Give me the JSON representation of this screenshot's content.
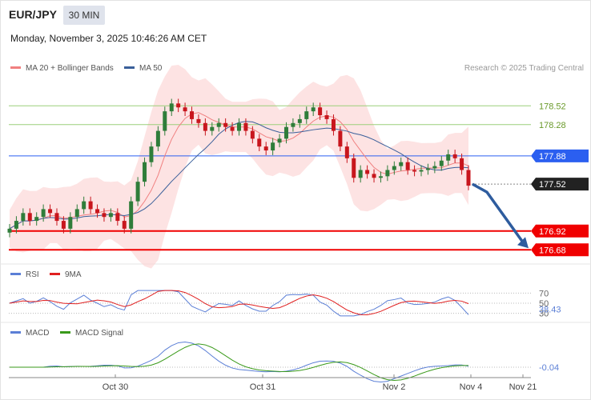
{
  "header": {
    "pair": "EUR/JPY",
    "timeframe": "30 MIN",
    "datetime": "Monday, November 3, 2025 10:46:26 AM CET",
    "credit": "Research © 2025 Trading Central"
  },
  "legends": {
    "price": [
      {
        "label": "MA 20 + Bollinger Bands",
        "color": "#f08080"
      },
      {
        "label": "MA 50",
        "color": "#3a5f9a"
      }
    ],
    "rsi": [
      {
        "label": "RSI",
        "color": "#5b7fd6"
      },
      {
        "label": "9MA",
        "color": "#e02020"
      }
    ],
    "macd": [
      {
        "label": "MACD",
        "color": "#5b7fd6"
      },
      {
        "label": "MACD Signal",
        "color": "#3a9a1a"
      }
    ]
  },
  "chart_data": {
    "type": "line",
    "instrument": "EUR/JPY",
    "interval": "30 MIN",
    "price_panel": {
      "candle_close_path": [
        176.95,
        177.05,
        177.15,
        177.05,
        177.1,
        177.2,
        177.15,
        177.05,
        176.95,
        177.1,
        177.2,
        177.3,
        177.2,
        177.15,
        177.1,
        177.15,
        177.05,
        176.95,
        177.3,
        177.55,
        177.8,
        178.0,
        178.2,
        178.45,
        178.55,
        178.5,
        178.45,
        178.35,
        178.3,
        178.2,
        178.25,
        178.3,
        178.25,
        178.2,
        178.3,
        178.2,
        178.1,
        178.0,
        177.95,
        178.05,
        178.1,
        178.25,
        178.3,
        178.35,
        178.45,
        178.5,
        178.4,
        178.35,
        178.2,
        178.0,
        177.85,
        177.6,
        177.7,
        177.65,
        177.6,
        177.62,
        177.7,
        177.75,
        177.8,
        177.7,
        177.68,
        177.7,
        177.72,
        177.75,
        177.82,
        177.9,
        177.85,
        177.7,
        177.5
      ],
      "ylim": [
        176.55,
        178.85
      ],
      "levels": [
        {
          "value": 178.52,
          "label": "178.52",
          "type": "resistance-green"
        },
        {
          "value": 178.28,
          "label": "178.28",
          "type": "resistance-green"
        },
        {
          "value": 177.88,
          "label": "177.88",
          "type": "pivot"
        },
        {
          "value": 177.52,
          "label": "177.52",
          "type": "last-price"
        },
        {
          "value": 176.92,
          "label": "176.92",
          "type": "support"
        },
        {
          "value": 176.68,
          "label": "176.68",
          "type": "support"
        }
      ],
      "forecast_arrow": {
        "from": 177.52,
        "to": 176.68,
        "direction": "down"
      }
    },
    "rsi_panel": {
      "levels": [
        {
          "value": 70,
          "label": "70"
        },
        {
          "value": 50,
          "label": "50"
        },
        {
          "value": 30,
          "label": "30"
        }
      ],
      "last_value": 38.43,
      "last_label": "38.43"
    },
    "macd_panel": {
      "last_value": -0.04,
      "last_label": "-0.04"
    },
    "x_ticks": [
      "Oct 30",
      "Oct 31",
      "Nov 2",
      "Nov 4",
      "Nov 21"
    ]
  }
}
